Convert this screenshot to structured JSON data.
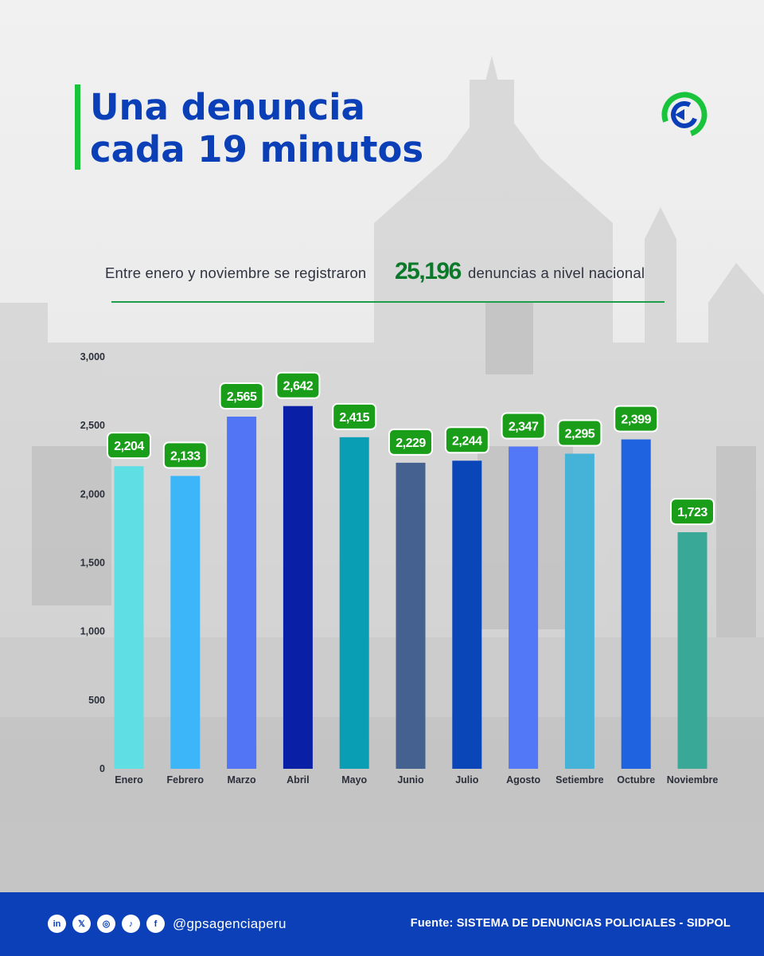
{
  "header": {
    "title_line1": "Una denuncia",
    "title_line2": "cada 19 minutos",
    "logo_icon": "gps-agency-logo-icon"
  },
  "subtitle": {
    "before": "Entre enero y noviembre se registraron",
    "total": "25,196",
    "after": "denuncias a nivel nacional"
  },
  "chart_data": {
    "type": "bar",
    "categories": [
      "Enero",
      "Febrero",
      "Marzo",
      "Abril",
      "Mayo",
      "Junio",
      "Julio",
      "Agosto",
      "Setiembre",
      "Octubre",
      "Noviembre"
    ],
    "values": [
      2204,
      2133,
      2565,
      2642,
      2415,
      2229,
      2244,
      2347,
      2295,
      2399,
      1723
    ],
    "data_labels": [
      "2,204",
      "2,133",
      "2,565",
      "2,642",
      "2,415",
      "2,229",
      "2,244",
      "2,347",
      "2,295",
      "2,399",
      "1,723"
    ],
    "bar_colors": [
      "#5fdfe4",
      "#3cb6f8",
      "#5275f5",
      "#0920a6",
      "#0a9eb4",
      "#45618f",
      "#0a46b8",
      "#5277f7",
      "#45b2d8",
      "#1f63e0",
      "#3aa896"
    ],
    "label_color": "#1a9e1a",
    "yticks": [
      "3,000",
      "2,500",
      "2,000",
      "1,500",
      "1,000",
      "500",
      "0"
    ],
    "ylim": [
      0,
      3000
    ],
    "title": "",
    "xlabel": "",
    "ylabel": "",
    "grid": false
  },
  "footer": {
    "social_icons": [
      "linkedin-icon",
      "x-icon",
      "instagram-icon",
      "tiktok-icon",
      "facebook-icon"
    ],
    "social_glyphs": [
      "in",
      "𝕏",
      "◎",
      "♪",
      "f"
    ],
    "handle": "@gpsagenciaperu",
    "source": "Fuente: SISTEMA DE DENUNCIAS POLICIALES - SIDPOL",
    "bg_color": "#0c40b8"
  }
}
